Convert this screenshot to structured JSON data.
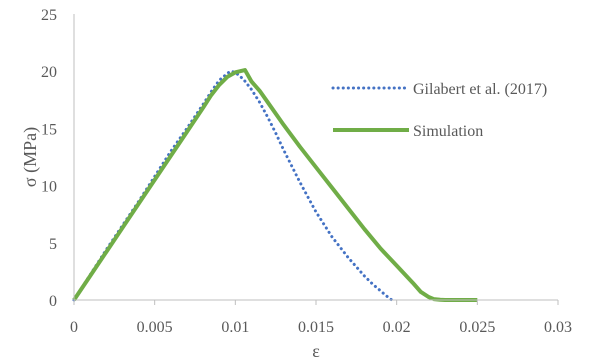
{
  "chart_data": {
    "type": "line",
    "title": "",
    "xlabel": "ε",
    "ylabel": "σ (MPa)",
    "xlim": [
      0,
      0.03
    ],
    "ylim": [
      0,
      25
    ],
    "x_ticks": [
      0,
      0.005,
      0.01,
      0.015,
      0.02,
      0.025,
      0.03
    ],
    "x_tick_labels": [
      "0",
      "0.005",
      "0.01",
      "0.015",
      "0.02",
      "0.025",
      "0.03"
    ],
    "y_ticks": [
      0,
      5,
      10,
      15,
      20,
      25
    ],
    "y_tick_labels": [
      "0",
      "5",
      "10",
      "15",
      "20",
      "25"
    ],
    "grid": false,
    "legend_position": "right",
    "series": [
      {
        "name": "Gilabert et al. (2017)",
        "color": "#4472C4",
        "style": "dotted",
        "x": [
          0,
          0.001,
          0.002,
          0.003,
          0.004,
          0.005,
          0.006,
          0.007,
          0.008,
          0.0085,
          0.009,
          0.0095,
          0.0097,
          0.01,
          0.0105,
          0.011,
          0.0115,
          0.012,
          0.0125,
          0.013,
          0.0135,
          0.014,
          0.0145,
          0.015,
          0.0155,
          0.016,
          0.0165,
          0.017,
          0.0175,
          0.018,
          0.0185,
          0.019,
          0.0195,
          0.0197
        ],
        "y": [
          0,
          2.2,
          4.4,
          6.5,
          8.6,
          10.8,
          13.0,
          15.0,
          17.1,
          18.2,
          19.2,
          19.8,
          20.0,
          19.9,
          19.3,
          18.4,
          17.3,
          16.0,
          14.6,
          13.1,
          11.7,
          10.3,
          9.0,
          7.7,
          6.6,
          5.5,
          4.6,
          3.7,
          2.9,
          2.1,
          1.4,
          0.8,
          0.2,
          0
        ]
      },
      {
        "name": "Simulation",
        "color": "#70AD47",
        "style": "solid",
        "x": [
          0,
          0.001,
          0.002,
          0.003,
          0.004,
          0.005,
          0.006,
          0.007,
          0.008,
          0.0085,
          0.009,
          0.0095,
          0.01,
          0.0103,
          0.0106,
          0.011,
          0.0115,
          0.012,
          0.013,
          0.014,
          0.015,
          0.016,
          0.017,
          0.018,
          0.019,
          0.02,
          0.021,
          0.0215,
          0.022,
          0.0223,
          0.0227,
          0.023,
          0.024,
          0.025
        ],
        "y": [
          0,
          2.1,
          4.2,
          6.3,
          8.4,
          10.5,
          12.6,
          14.7,
          16.8,
          17.9,
          18.8,
          19.5,
          19.9,
          20.0,
          20.1,
          19.1,
          18.3,
          17.3,
          15.3,
          13.4,
          11.6,
          9.8,
          8.0,
          6.2,
          4.5,
          3.0,
          1.5,
          0.7,
          0.25,
          0.08,
          0.02,
          0,
          0,
          0
        ]
      }
    ]
  }
}
